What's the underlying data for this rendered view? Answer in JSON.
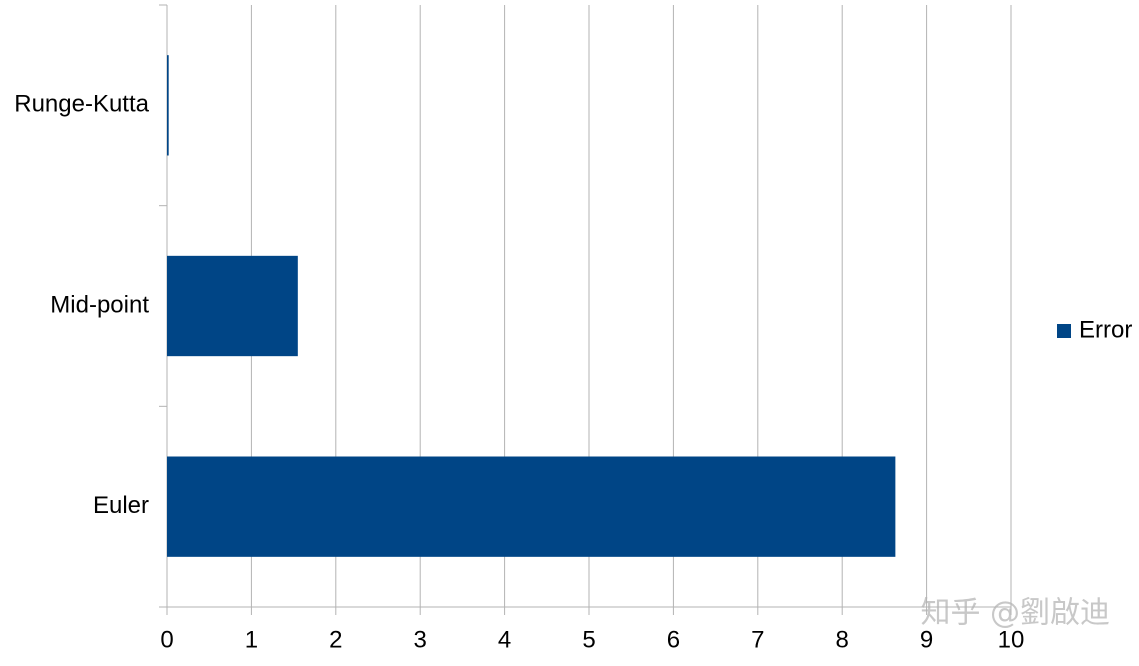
{
  "chart_data": {
    "type": "hbar",
    "categories": [
      "Euler",
      "Mid-point",
      "Runge-Kutta"
    ],
    "series": [
      {
        "name": "Error",
        "color": "#004586",
        "values": [
          8.63,
          1.55,
          0.02
        ]
      }
    ],
    "xlim": [
      0,
      10
    ],
    "xticks": [
      0,
      1,
      2,
      3,
      4,
      5,
      6,
      7,
      8,
      9,
      10
    ],
    "grid": true,
    "legend": "right",
    "watermark": "知乎 @劉啟迪"
  }
}
